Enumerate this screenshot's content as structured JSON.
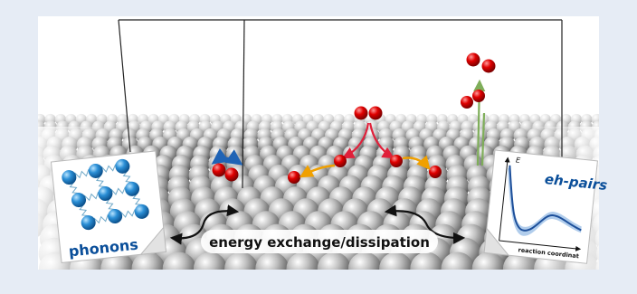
{
  "labels": {
    "left_card": "phonons",
    "right_card": "eh-pairs",
    "center": "energy exchange/dissipation",
    "energy_axis": "E",
    "reaction_axis": "reaction coordinat"
  },
  "colors": {
    "background": "#e6ecf5",
    "panel": "#ffffff",
    "atom": "#d40000",
    "incoming_arrow": "#e0203a",
    "diffusion_arrow": "#f0a000",
    "desorption_arrow": "#7fae5a",
    "rotation_arrow": "#1f63b5",
    "phonon_atom": "#2b8fd6",
    "label_text": "#0b4f9a",
    "curve": "#1d4f9a",
    "curve_band": "#a9c8ea"
  },
  "icons": [
    "double-headed-curved-arrow",
    "circular-rotation-arrow",
    "dumbbell-molecule"
  ]
}
